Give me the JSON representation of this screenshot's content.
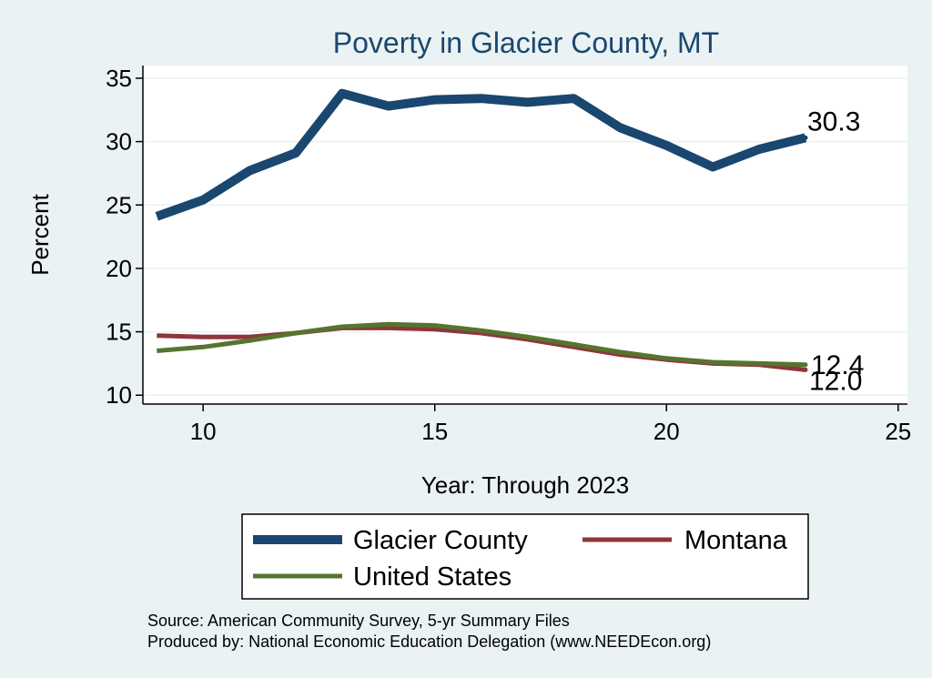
{
  "chart_data": {
    "type": "line",
    "title": "Poverty in Glacier County, MT",
    "xlabel": "Year: Through 2023",
    "ylabel": "Percent",
    "xlim": [
      8.7,
      25.2
    ],
    "ylim": [
      9.3,
      36.0
    ],
    "x_ticks": [
      10,
      15,
      20,
      25
    ],
    "y_ticks": [
      10,
      15,
      20,
      25,
      30,
      35
    ],
    "grid": true,
    "legend_position": "bottom",
    "x": [
      9,
      10,
      11,
      12,
      13,
      14,
      15,
      16,
      17,
      18,
      19,
      20,
      21,
      22,
      23
    ],
    "series": [
      {
        "name": "Glacier County",
        "color": "#1a476f",
        "values": [
          24.1,
          25.4,
          27.7,
          29.1,
          33.8,
          32.8,
          33.3,
          33.4,
          33.1,
          33.4,
          31.1,
          29.7,
          28.0,
          29.4,
          30.3
        ],
        "end_label": "30.3"
      },
      {
        "name": "Montana",
        "color": "#90353b",
        "values": [
          14.7,
          14.6,
          14.6,
          14.9,
          15.3,
          15.3,
          15.2,
          14.9,
          14.4,
          13.8,
          13.2,
          12.8,
          12.5,
          12.4,
          12.0
        ],
        "end_label": "12.0"
      },
      {
        "name": "United States",
        "color": "#55752f",
        "values": [
          13.5,
          13.8,
          14.3,
          14.9,
          15.4,
          15.6,
          15.5,
          15.1,
          14.6,
          14.0,
          13.4,
          12.9,
          12.6,
          12.5,
          12.4
        ],
        "end_label": "12.4"
      }
    ]
  },
  "footer": {
    "source": "Source: American Community Survey, 5-yr Summary Files",
    "produced_by": "Produced by: National Economic Education Delegation (www.NEEDEcon.org)"
  }
}
